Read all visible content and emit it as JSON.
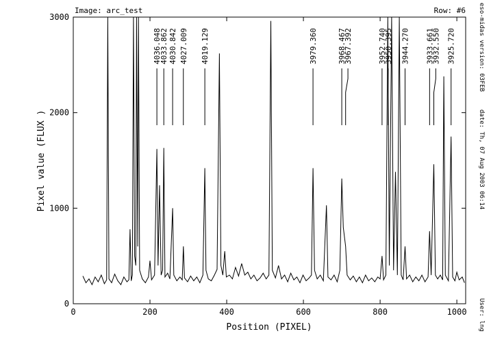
{
  "chart_data": {
    "type": "line",
    "title": "Image: arc_test",
    "subtitle": "Row: #6",
    "xlabel": "Position (PIXEL)",
    "ylabel": "Pixel value (FLUX )",
    "side_texts": [
      "eso-midas version: 03FEB",
      "date: Th, 07 Aug 2003 06:14",
      "User: lng"
    ],
    "xlim": [
      0,
      1023
    ],
    "ylim": [
      0,
      3000
    ],
    "xticks": [
      0,
      200,
      400,
      600,
      800,
      1000
    ],
    "yticks": [
      0,
      1000,
      2000,
      3000
    ],
    "color": "#000000",
    "x": [
      25,
      33,
      41,
      49,
      57,
      65,
      73,
      81,
      87,
      90,
      93,
      100,
      108,
      116,
      124,
      132,
      140,
      145,
      148,
      151,
      154,
      157,
      160,
      163,
      165,
      168,
      170,
      173,
      180,
      188,
      196,
      200,
      204,
      212,
      218,
      221,
      225,
      229,
      233,
      236,
      239,
      246,
      252,
      259,
      262,
      270,
      278,
      284,
      287,
      290,
      298,
      306,
      314,
      322,
      330,
      338,
      343,
      346,
      352,
      360,
      368,
      375,
      381,
      385,
      390,
      395,
      399,
      407,
      415,
      423,
      431,
      439,
      447,
      455,
      463,
      471,
      479,
      487,
      495,
      503,
      510,
      515,
      519,
      527,
      535,
      543,
      551,
      559,
      567,
      575,
      583,
      591,
      599,
      607,
      615,
      621,
      625,
      629,
      636,
      644,
      652,
      660,
      664,
      672,
      680,
      688,
      695,
      700,
      704,
      710,
      714,
      722,
      730,
      738,
      746,
      754,
      762,
      770,
      778,
      786,
      794,
      800,
      805,
      809,
      815,
      820,
      824,
      830,
      835,
      840,
      845,
      850,
      855,
      860,
      865,
      869,
      877,
      885,
      893,
      901,
      909,
      917,
      925,
      929,
      933,
      940,
      944,
      950,
      957,
      963,
      966,
      970,
      978,
      985,
      989,
      995,
      1000,
      1006,
      1014,
      1020
    ],
    "values": [
      290,
      220,
      260,
      200,
      280,
      230,
      300,
      210,
      250,
      3000,
      260,
      220,
      310,
      240,
      200,
      280,
      230,
      250,
      780,
      240,
      300,
      3000,
      500,
      400,
      3000,
      600,
      3000,
      350,
      260,
      220,
      280,
      450,
      250,
      300,
      1620,
      400,
      1240,
      300,
      350,
      1630,
      280,
      320,
      260,
      1000,
      300,
      240,
      280,
      250,
      600,
      270,
      230,
      290,
      240,
      280,
      220,
      300,
      1420,
      350,
      260,
      240,
      300,
      360,
      2620,
      400,
      300,
      550,
      280,
      300,
      260,
      380,
      290,
      420,
      300,
      330,
      260,
      300,
      240,
      270,
      320,
      260,
      300,
      2960,
      350,
      270,
      400,
      260,
      300,
      230,
      320,
      250,
      280,
      220,
      300,
      240,
      270,
      300,
      1420,
      350,
      260,
      300,
      240,
      1030,
      280,
      250,
      300,
      230,
      350,
      1310,
      800,
      600,
      300,
      250,
      290,
      230,
      280,
      220,
      300,
      240,
      270,
      230,
      280,
      260,
      500,
      250,
      300,
      3000,
      400,
      3000,
      350,
      1380,
      300,
      3000,
      300,
      250,
      600,
      260,
      300,
      230,
      280,
      240,
      300,
      230,
      280,
      760,
      300,
      1460,
      300,
      260,
      300,
      250,
      2380,
      300,
      240,
      1750,
      280,
      240,
      330,
      250,
      280,
      220
    ],
    "annotations": [
      {
        "x": 218,
        "label": "4036.048"
      },
      {
        "x": 236,
        "label": "4033.862"
      },
      {
        "x": 259,
        "label": "4030.842"
      },
      {
        "x": 287,
        "label": "4027.009"
      },
      {
        "x": 343,
        "label": "4019.129"
      },
      {
        "x": 625,
        "label": "3979.360"
      },
      {
        "x": 700,
        "label": "3968.467"
      },
      {
        "x": 710,
        "label": "3967.392"
      },
      {
        "x": 805,
        "label": "3952.740"
      },
      {
        "x": 821,
        "label": "3950.395"
      },
      {
        "x": 865,
        "label": "3944.270"
      },
      {
        "x": 929,
        "label": "3933.661"
      },
      {
        "x": 940,
        "label": "3932.550"
      },
      {
        "x": 985,
        "label": "3925.720"
      }
    ]
  }
}
